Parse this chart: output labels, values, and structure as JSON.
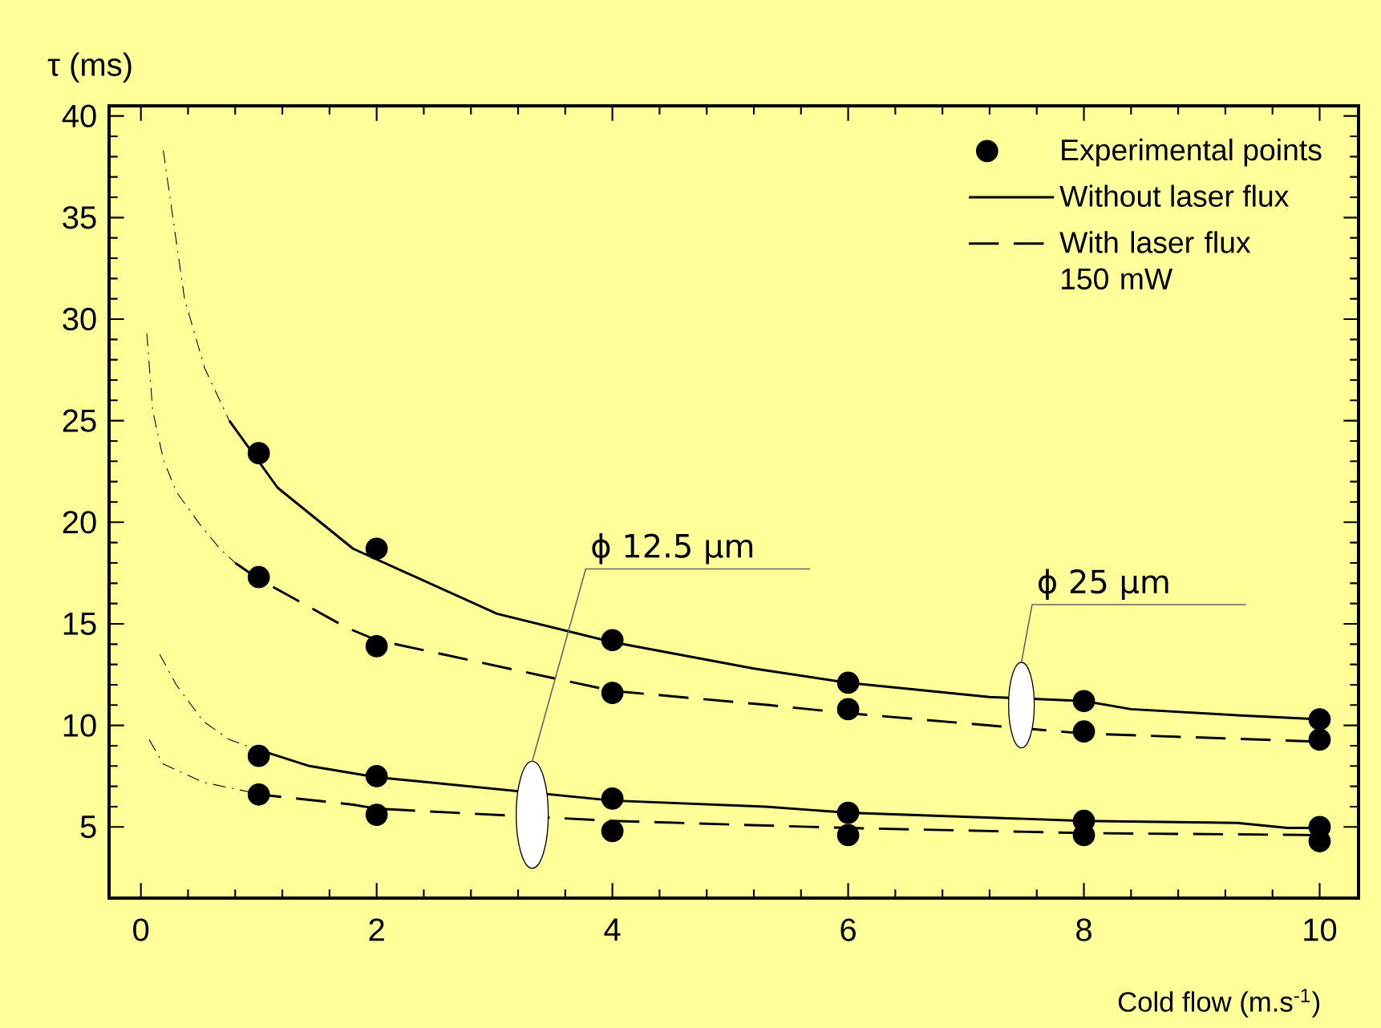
{
  "chart_data": {
    "type": "line",
    "xlabel": "Cold flow (m.s$^{-1}$)",
    "ylabel": "τ (ms)",
    "xlim": [
      -0.27,
      10.33
    ],
    "ylim": [
      1.5,
      40.5
    ],
    "xticks": [
      0,
      2,
      4,
      6,
      8,
      10
    ],
    "yticks": [
      5,
      10,
      15,
      20,
      25,
      30,
      35,
      40
    ],
    "legend": "top right",
    "grid": false,
    "annotations": [
      "ϕ 12.5 µm",
      "ϕ 25 µm"
    ],
    "series": [
      {
        "name": "Experimental points",
        "type": "scatter",
        "marker": "circle",
        "color": "#000000",
        "x": [
          1,
          1,
          1,
          1,
          2,
          2,
          2,
          2,
          4,
          4,
          4,
          4,
          6,
          6,
          6,
          6,
          8,
          8,
          8,
          8,
          10,
          10,
          10,
          10
        ],
        "values": [
          23.4,
          17.3,
          8.5,
          6.6,
          18.7,
          13.9,
          7.5,
          5.6,
          14.2,
          11.6,
          6.4,
          4.8,
          12.1,
          10.8,
          5.7,
          4.6,
          11.2,
          9.7,
          5.3,
          4.6,
          10.3,
          9.3,
          5.0,
          4.3
        ]
      },
      {
        "name": "Without laser flux",
        "line_style": "solid",
        "color": "#000000",
        "x": [
          0.75,
          1.16,
          1.8,
          3.02,
          4,
          5.2,
          6,
          7.2,
          8,
          8.4,
          9.3,
          10
        ],
        "values": [
          25.0,
          21.7,
          18.7,
          15.5,
          14.1,
          12.8,
          12.1,
          11.4,
          11.2,
          10.8,
          10.5,
          10.3
        ]
      },
      {
        "name": "With laser flux 150 mW",
        "line_style": "dashed",
        "color": "#000000",
        "x": [
          0.8,
          1,
          1.75,
          2,
          4,
          5.33,
          6,
          8,
          10
        ],
        "values": [
          18.0,
          17.2,
          14.8,
          14.2,
          11.7,
          11.0,
          10.6,
          9.6,
          9.2
        ]
      },
      {
        "line_style": "solid",
        "color": "#000000",
        "x": [
          0.94,
          1,
          1.43,
          2,
          4,
          5.3,
          6,
          8,
          9.3,
          9.73,
          10
        ],
        "values": [
          8.9,
          8.8,
          8.0,
          7.45,
          6.3,
          6.0,
          5.7,
          5.3,
          5.2,
          4.95,
          4.95
        ]
      },
      {
        "line_style": "dashed",
        "color": "#000000",
        "x": [
          0.94,
          1,
          1.8,
          2,
          4,
          6,
          8,
          10
        ],
        "values": [
          6.7,
          6.6,
          6.1,
          5.9,
          5.3,
          4.95,
          4.7,
          4.6
        ]
      },
      {
        "line_style": "dotted",
        "color": "#000000",
        "x": [
          0.19,
          0.37,
          0.54,
          0.75
        ],
        "values": [
          38.3,
          31.0,
          27.6,
          25.0
        ]
      },
      {
        "line_style": "dotted",
        "color": "#000000",
        "x": [
          0.05,
          0.07,
          0.1,
          0.19,
          0.3,
          0.5,
          0.67,
          0.8
        ],
        "values": [
          29.3,
          27.8,
          25.5,
          23.1,
          21.5,
          19.9,
          18.7,
          18.0
        ]
      },
      {
        "line_style": "dotted",
        "color": "#000000",
        "x": [
          0.16,
          0.3,
          0.53,
          0.75,
          0.94
        ],
        "values": [
          13.5,
          12.0,
          10.2,
          9.3,
          8.9
        ]
      },
      {
        "line_style": "dotted",
        "color": "#000000",
        "x": [
          0.07,
          0.19,
          0.53,
          0.94
        ],
        "values": [
          9.3,
          8.1,
          7.2,
          6.7
        ]
      }
    ]
  }
}
